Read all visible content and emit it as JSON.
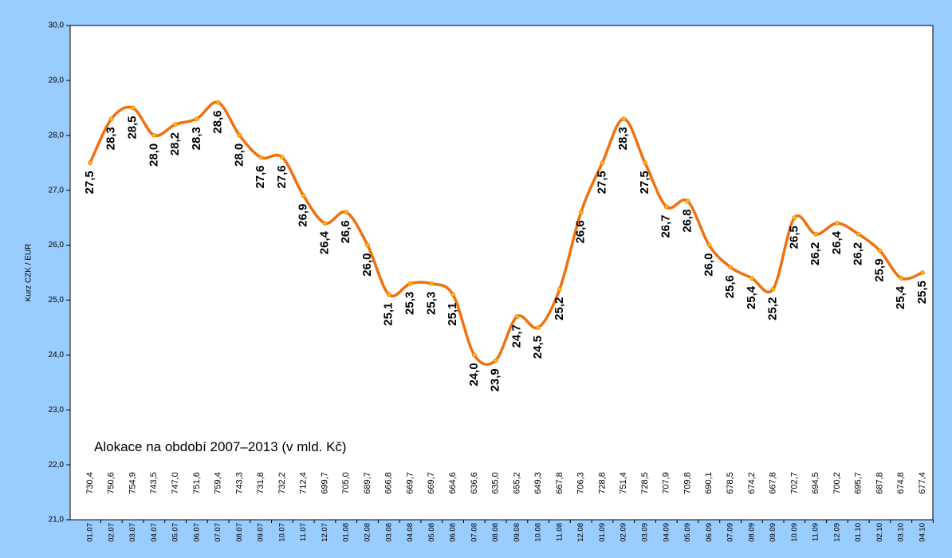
{
  "chart_data": {
    "type": "line",
    "y_label": "Kurz CZK / EUR",
    "categories": [
      "01.07",
      "02.07",
      "03.07",
      "04.07",
      "05.07",
      "06.07",
      "07.07",
      "08.07",
      "09.07",
      "10.07",
      "11.07",
      "12.07",
      "01.08",
      "02.08",
      "03.08",
      "04.08",
      "05.08",
      "06.08",
      "07.08",
      "08.08",
      "09.08",
      "10.08",
      "11.08",
      "12.08",
      "01.09",
      "02.09",
      "03.09",
      "04.09",
      "05.09",
      "06.09",
      "07.09",
      "08.09",
      "09.09",
      "10.09",
      "11.09",
      "12.09",
      "01.10",
      "02.10",
      "03.10",
      "04.10"
    ],
    "series": [
      {
        "color": "#f07010",
        "marker_color": "#ffc000",
        "values": [
          27.5,
          28.3,
          28.5,
          28.0,
          28.2,
          28.3,
          28.6,
          28.0,
          27.6,
          27.6,
          26.9,
          26.4,
          26.6,
          26.0,
          25.1,
          25.3,
          25.3,
          25.1,
          24.0,
          23.9,
          24.7,
          24.5,
          25.2,
          26.6,
          27.5,
          28.3,
          27.5,
          26.7,
          26.8,
          26.0,
          25.6,
          25.4,
          25.2,
          26.5,
          26.2,
          26.4,
          26.2,
          25.9,
          25.4,
          25.5
        ],
        "value_labels": [
          "27,5",
          "28,3",
          "28,5",
          "28,0",
          "28,2",
          "28,3",
          "28,6",
          "28,0",
          "27,6",
          "27,6",
          "26,9",
          "26,4",
          "26,6",
          "26,0",
          "25,1",
          "25,3",
          "25,3",
          "25,1",
          "24,0",
          "23,9",
          "24,7",
          "24,5",
          "25,2",
          "26,6",
          "27,5",
          "28,3",
          "27,5",
          "26,7",
          "26,8",
          "26,0",
          "25,6",
          "25,4",
          "25,2",
          "26,5",
          "26,2",
          "26,4",
          "26,2",
          "25,9",
          "25,4",
          "25,5"
        ]
      }
    ],
    "allocation": {
      "label": "Alokace na období 2007–2013 (v mld. Kč)",
      "values": [
        730.4,
        750.6,
        754.9,
        743.5,
        747.0,
        751.6,
        759.4,
        743.3,
        731.8,
        732.2,
        712.4,
        699.7,
        705.0,
        689.7,
        666.8,
        669.7,
        669.7,
        664.6,
        636.6,
        635.0,
        655.2,
        649.3,
        667.8,
        706.3,
        728.8,
        751.4,
        728.5,
        707.9,
        709.8,
        690.1,
        678.5,
        674.2,
        667.8,
        702.7,
        694.5,
        700.2,
        695.7,
        687.8,
        674.8,
        677.4
      ],
      "value_labels": [
        "730,4",
        "750,6",
        "754,9",
        "743,5",
        "747,0",
        "751,6",
        "759,4",
        "743,3",
        "731,8",
        "732,2",
        "712,4",
        "699,7",
        "705,0",
        "689,7",
        "666,8",
        "669,7",
        "669,7",
        "664,6",
        "636,6",
        "635,0",
        "655,2",
        "649,3",
        "667,8",
        "706,3",
        "728,8",
        "751,4",
        "728,5",
        "707,9",
        "709,8",
        "690,1",
        "678,5",
        "674,2",
        "667,8",
        "702,7",
        "694,5",
        "700,2",
        "695,7",
        "687,8",
        "674,8",
        "677,4"
      ]
    },
    "ylim": [
      21,
      30
    ],
    "yticks": [
      {
        "value": 21,
        "label": "21,0"
      },
      {
        "value": 22,
        "label": "22,0"
      },
      {
        "value": 23,
        "label": "23,0"
      },
      {
        "value": 24,
        "label": "24,0"
      },
      {
        "value": 25,
        "label": "25,0"
      },
      {
        "value": 26,
        "label": "26,0"
      },
      {
        "value": 27,
        "label": "27,0"
      },
      {
        "value": 28,
        "label": "28,0"
      },
      {
        "value": 29,
        "label": "29,0"
      },
      {
        "value": 30,
        "label": "30,0"
      }
    ],
    "grid": false
  }
}
